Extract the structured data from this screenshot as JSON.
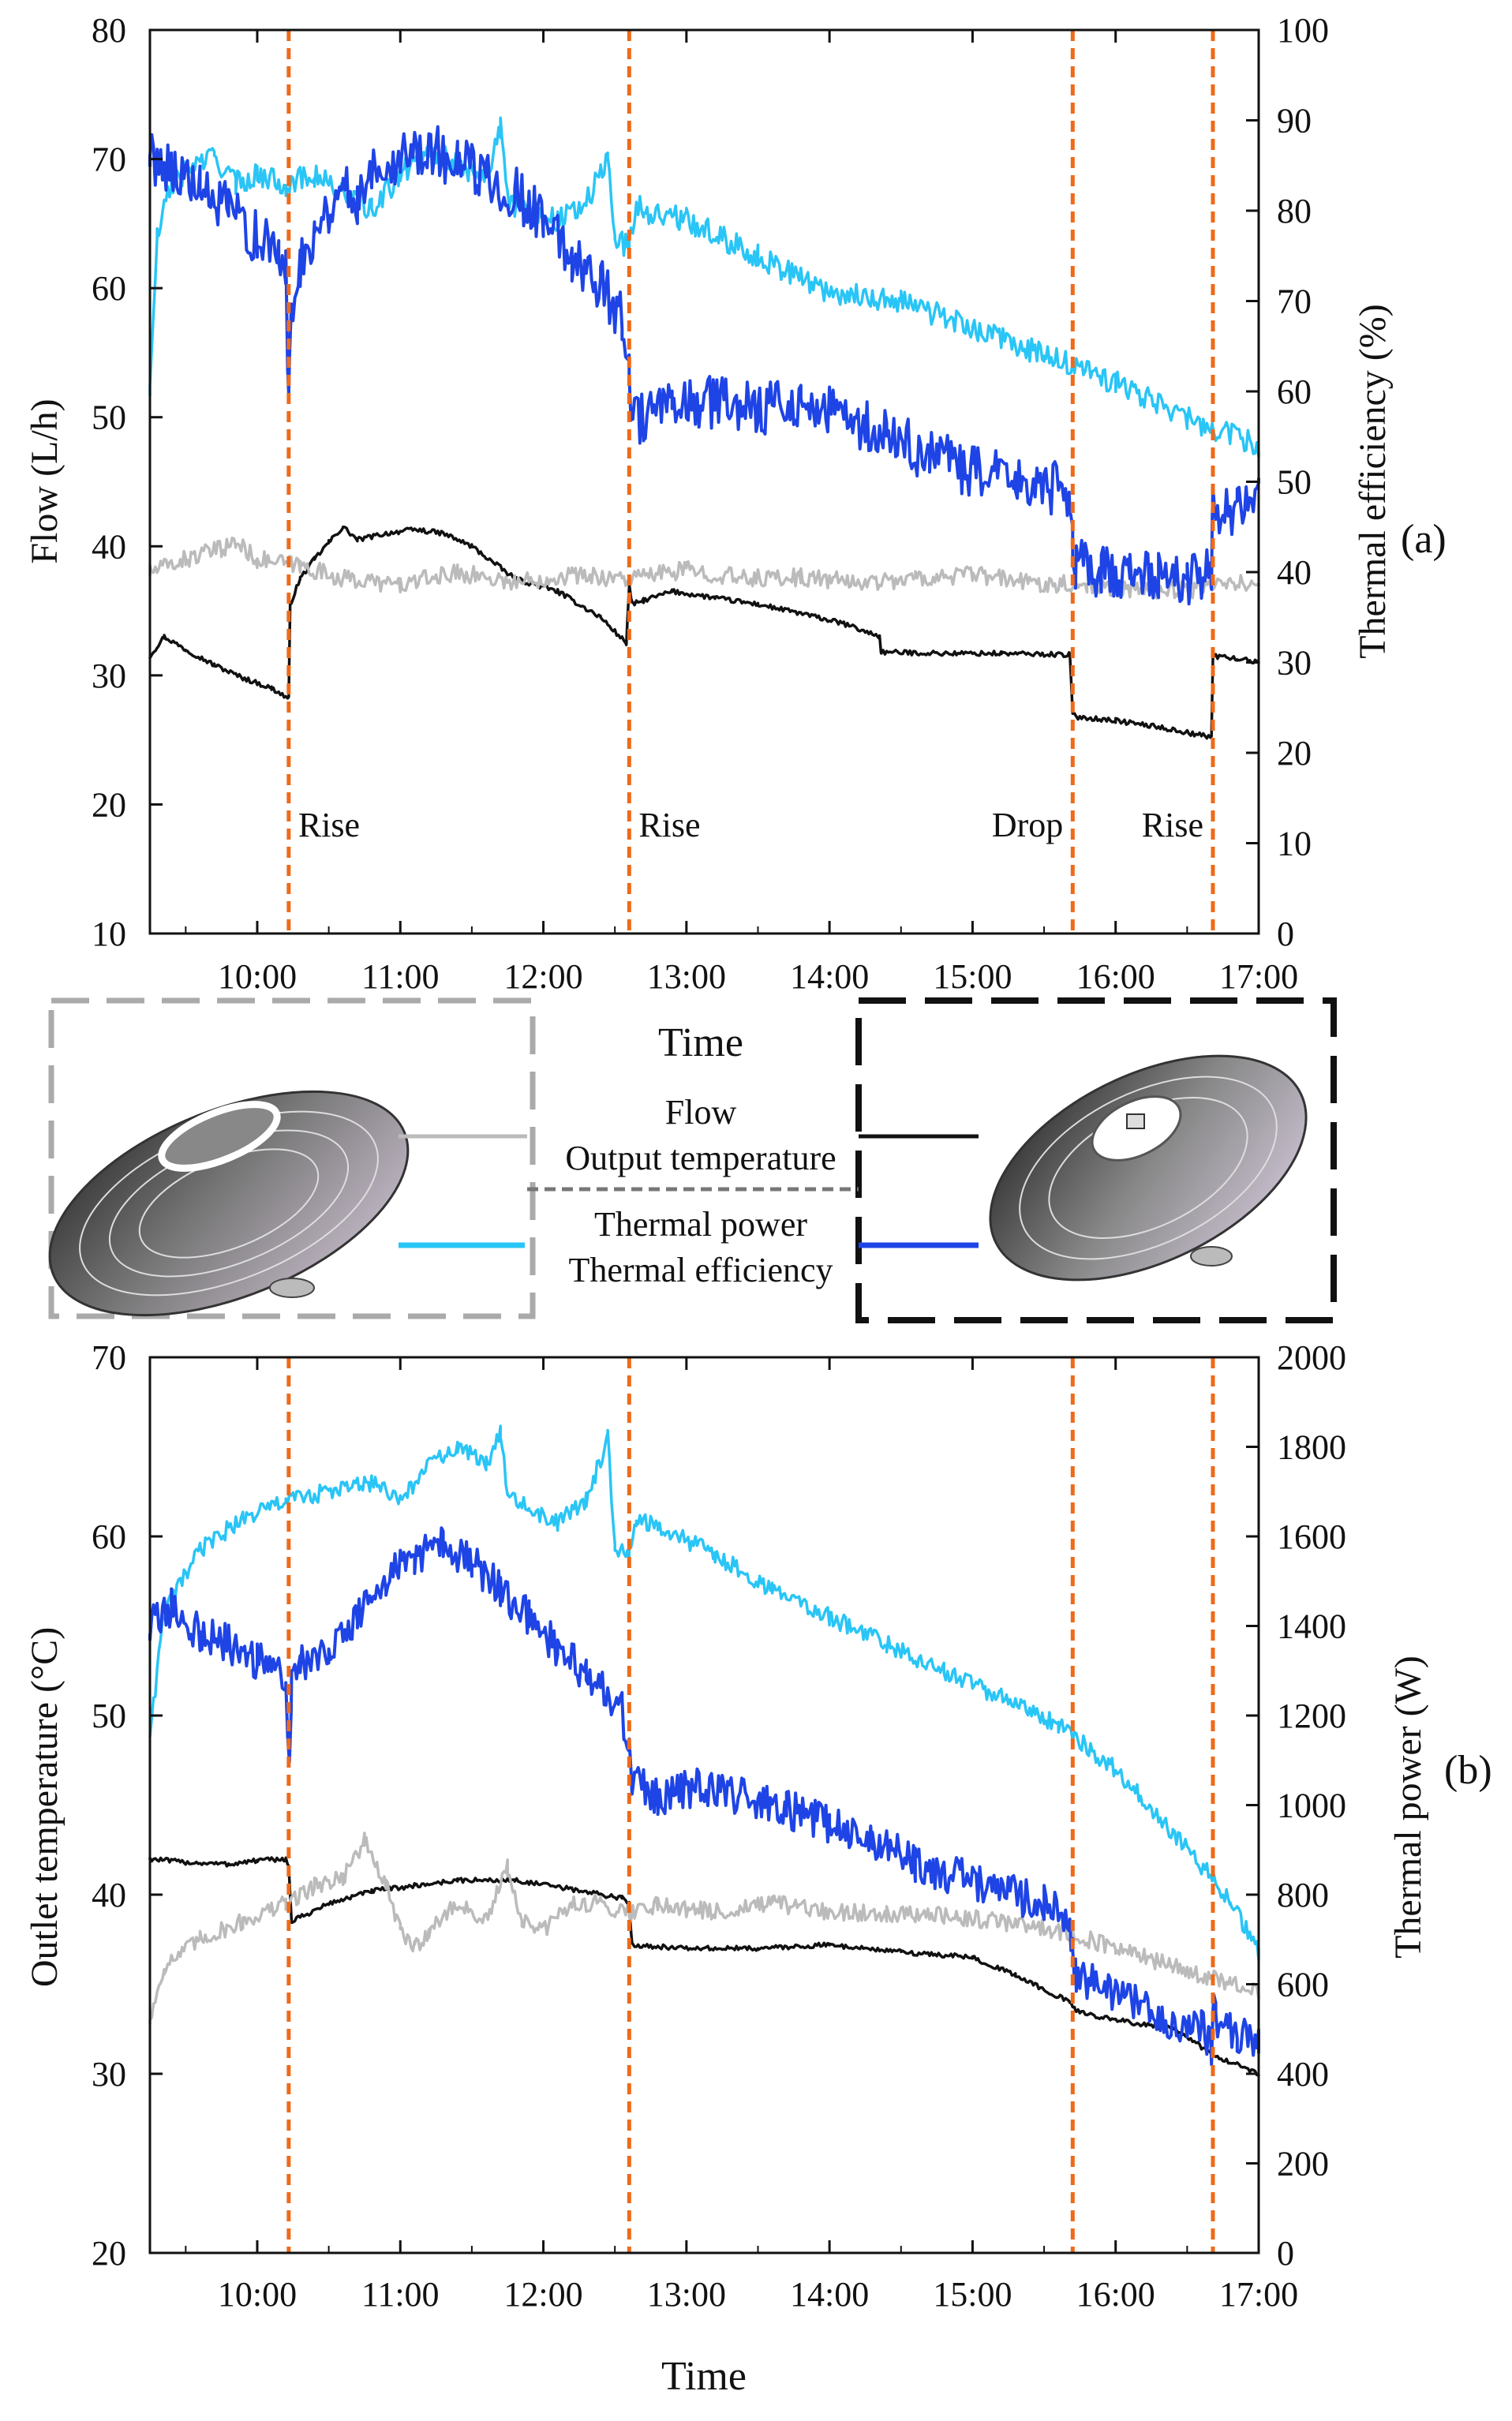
{
  "chart_data": [
    {
      "panel": "(a)",
      "type": "line",
      "xlabel": "",
      "ylabel": "Flow (L/h)",
      "y2label": "Thermal efficiency (%)",
      "xlim": [
        9.25,
        17.0
      ],
      "ylim": [
        10,
        80
      ],
      "y2lim": [
        0,
        100
      ],
      "xticks": [
        "10:00",
        "11:00",
        "12:00",
        "13:00",
        "14:00",
        "15:00",
        "16:00",
        "17:00"
      ],
      "yticks": [
        "10",
        "20",
        "30",
        "40",
        "50",
        "60",
        "70",
        "80"
      ],
      "y2ticks": [
        "0",
        "10",
        "20",
        "30",
        "40",
        "50",
        "60",
        "70",
        "80",
        "90",
        "100"
      ],
      "events": [
        {
          "time": 10.22,
          "label": "Rise"
        },
        {
          "time": 12.6,
          "label": "Rise"
        },
        {
          "time": 15.7,
          "label": "Drop"
        },
        {
          "time": 16.68,
          "label": "Rise"
        }
      ],
      "series": [
        {
          "name": "Flow",
          "axis": "left",
          "color": "#111111",
          "x": [
            9.25,
            9.35,
            9.5,
            9.7,
            9.9,
            10.1,
            10.22,
            10.23,
            10.3,
            10.4,
            10.5,
            10.6,
            10.7,
            10.9,
            11.1,
            11.3,
            11.5,
            11.8,
            12.1,
            12.4,
            12.58,
            12.6,
            12.62,
            12.7,
            12.9,
            13.2,
            13.5,
            13.8,
            14.1,
            14.35,
            14.36,
            14.8,
            15.2,
            15.68,
            15.7,
            15.72,
            16.0,
            16.3,
            16.67,
            16.68,
            16.69,
            16.85,
            17.0
          ],
          "y": [
            31.5,
            33.0,
            32.0,
            30.8,
            29.8,
            29.0,
            28.2,
            35.5,
            37.5,
            39.0,
            40.3,
            41.5,
            40.5,
            41.0,
            41.3,
            41.0,
            40.0,
            37.5,
            36.5,
            34.5,
            32.5,
            37.0,
            35.5,
            35.8,
            36.5,
            36.0,
            35.5,
            34.8,
            34.0,
            33.0,
            31.8,
            31.7,
            31.7,
            31.6,
            27.0,
            26.8,
            26.5,
            26.0,
            25.2,
            31.5,
            31.5,
            31.3,
            31.0
          ]
        },
        {
          "name": "Output temperature",
          "axis": "left",
          "color": "#bbbbbb",
          "x": [
            9.25,
            9.5,
            9.75,
            9.85,
            10.0,
            10.3,
            10.6,
            11.0,
            11.4,
            11.8,
            12.2,
            12.6,
            13.0,
            13.4,
            13.8,
            14.2,
            14.6,
            15.0,
            15.4,
            15.8,
            16.2,
            16.6,
            17.0
          ],
          "y": [
            38.0,
            39.0,
            39.8,
            40.3,
            39.0,
            38.5,
            37.5,
            37.0,
            38.0,
            37.2,
            37.8,
            37.5,
            38.2,
            37.5,
            37.6,
            37.2,
            37.5,
            37.8,
            37.2,
            37.0,
            36.6,
            36.7,
            37.3
          ]
        },
        {
          "name": "Thermal power",
          "axis": "right",
          "color": "#29c5f6",
          "x": [
            9.25,
            9.3,
            9.4,
            9.55,
            9.7,
            9.85,
            10.0,
            10.2,
            10.4,
            10.6,
            10.8,
            11.0,
            11.2,
            11.4,
            11.6,
            11.7,
            11.75,
            11.9,
            12.1,
            12.3,
            12.4,
            12.45,
            12.5,
            12.6,
            12.65,
            12.7,
            13.0,
            13.5,
            14.0,
            14.5,
            15.0,
            15.5,
            16.0,
            16.5,
            17.0
          ],
          "y": [
            60,
            77,
            83,
            85,
            86,
            83,
            84,
            83,
            84,
            82,
            80,
            84,
            87,
            85,
            84,
            89,
            81,
            80,
            79,
            81,
            84,
            86,
            77,
            76,
            81,
            80,
            79,
            75,
            71,
            70,
            67,
            64,
            61,
            57,
            54
          ]
        },
        {
          "name": "Thermal efficiency",
          "axis": "right",
          "color": "#1e44e6",
          "x": [
            9.25,
            9.4,
            9.6,
            9.8,
            10.0,
            10.15,
            10.2,
            10.22,
            10.24,
            10.3,
            10.4,
            10.5,
            10.6,
            10.7,
            10.8,
            11.0,
            11.2,
            11.4,
            11.6,
            11.8,
            12.0,
            12.2,
            12.4,
            12.55,
            12.6,
            12.62,
            12.7,
            12.9,
            13.2,
            13.5,
            13.8,
            14.1,
            14.4,
            14.7,
            15.0,
            15.3,
            15.68,
            15.7,
            15.72,
            15.9,
            16.1,
            16.3,
            16.5,
            16.67,
            16.68,
            16.69,
            16.85,
            17.0
          ],
          "y": [
            86,
            85,
            82,
            80,
            77,
            75,
            73,
            60,
            70,
            74,
            78,
            80,
            83,
            81,
            85,
            86,
            87,
            85,
            84,
            82,
            79,
            75,
            72,
            68,
            63,
            57,
            57,
            58,
            59,
            58,
            59,
            57,
            55,
            53,
            51,
            50,
            49,
            43,
            41,
            40,
            40,
            40,
            39,
            40,
            49,
            47,
            47,
            48
          ]
        }
      ]
    },
    {
      "panel": "(b)",
      "type": "line",
      "xlabel": "Time",
      "ylabel": "Outlet temperature (°C)",
      "y2label": "Thermal power (W)",
      "xlim": [
        9.25,
        17.0
      ],
      "ylim": [
        20,
        70
      ],
      "y2lim": [
        0,
        2000
      ],
      "xticks": [
        "10:00",
        "11:00",
        "12:00",
        "13:00",
        "14:00",
        "15:00",
        "16:00",
        "17:00"
      ],
      "yticks": [
        "20",
        "30",
        "40",
        "50",
        "60",
        "70"
      ],
      "y2ticks": [
        "0",
        "200",
        "400",
        "600",
        "800",
        "1000",
        "1200",
        "1400",
        "1600",
        "1800",
        "2000"
      ],
      "events": [
        {
          "time": 10.22,
          "label": ""
        },
        {
          "time": 12.6,
          "label": ""
        },
        {
          "time": 15.7,
          "label": ""
        },
        {
          "time": 16.68,
          "label": ""
        }
      ],
      "series": [
        {
          "name": "Flow",
          "axis": "left",
          "color": "#111111",
          "x": [
            9.25,
            9.5,
            9.8,
            10.0,
            10.2,
            10.22,
            10.24,
            10.5,
            10.8,
            11.1,
            11.4,
            11.8,
            12.2,
            12.55,
            12.6,
            12.62,
            13.0,
            13.5,
            14.0,
            14.5,
            15.0,
            15.3,
            15.68,
            15.72,
            16.0,
            16.4,
            16.7,
            17.0
          ],
          "y": [
            42.0,
            41.8,
            41.7,
            41.9,
            42.0,
            41.5,
            38.5,
            39.5,
            40.2,
            40.5,
            40.8,
            40.8,
            40.3,
            39.8,
            39.5,
            37.2,
            37.0,
            37.0,
            37.2,
            36.8,
            36.5,
            35.5,
            34.0,
            33.5,
            33.0,
            32.5,
            31.0,
            30.0
          ]
        },
        {
          "name": "Output temperature",
          "axis": "left",
          "color": "#bbbbbb",
          "x": [
            9.25,
            9.35,
            9.6,
            9.9,
            10.2,
            10.4,
            10.6,
            10.75,
            10.9,
            11.0,
            11.1,
            11.2,
            11.4,
            11.6,
            11.75,
            11.85,
            12.0,
            12.2,
            12.4,
            12.6,
            12.8,
            13.2,
            13.6,
            14.0,
            14.4,
            14.8,
            15.2,
            15.6,
            16.0,
            16.4,
            16.8,
            17.0
          ],
          "y": [
            33.0,
            36.0,
            37.5,
            38.5,
            39.5,
            40.5,
            41.0,
            43.0,
            40.5,
            38.0,
            37.0,
            38.0,
            39.5,
            38.5,
            41.5,
            38.5,
            38.0,
            39.5,
            39.5,
            39.0,
            39.5,
            39.0,
            39.5,
            39.0,
            39.0,
            38.8,
            38.5,
            38.0,
            37.0,
            36.0,
            35.0,
            34.5
          ]
        },
        {
          "name": "Thermal power",
          "axis": "right",
          "color": "#29c5f6",
          "x": [
            9.25,
            9.35,
            9.6,
            9.9,
            10.2,
            10.5,
            10.8,
            11.0,
            11.2,
            11.4,
            11.6,
            11.7,
            11.75,
            11.9,
            12.1,
            12.3,
            12.45,
            12.5,
            12.6,
            12.65,
            12.8,
            13.2,
            13.6,
            14.0,
            14.4,
            14.8,
            15.2,
            15.6,
            16.0,
            16.4,
            16.8,
            17.0
          ],
          "y": [
            1160,
            1430,
            1570,
            1640,
            1680,
            1700,
            1720,
            1680,
            1760,
            1800,
            1760,
            1840,
            1700,
            1660,
            1630,
            1680,
            1820,
            1580,
            1560,
            1640,
            1620,
            1560,
            1480,
            1420,
            1360,
            1300,
            1240,
            1180,
            1080,
            940,
            790,
            670
          ]
        },
        {
          "name": "Thermal efficiency",
          "axis": "right",
          "color": "#1e44e6",
          "x": [
            9.25,
            9.4,
            9.6,
            9.8,
            10.0,
            10.2,
            10.22,
            10.24,
            10.3,
            10.5,
            10.7,
            10.9,
            11.1,
            11.3,
            11.5,
            11.7,
            11.9,
            12.1,
            12.3,
            12.55,
            12.6,
            12.62,
            12.8,
            13.1,
            13.4,
            13.7,
            14.0,
            14.3,
            14.6,
            14.9,
            15.2,
            15.5,
            15.68,
            15.7,
            15.72,
            16.0,
            16.3,
            16.6,
            16.67,
            16.68,
            16.7,
            16.85,
            17.0
          ],
          "y": [
            1400,
            1440,
            1380,
            1360,
            1320,
            1300,
            1090,
            1280,
            1310,
            1360,
            1420,
            1500,
            1560,
            1580,
            1540,
            1480,
            1420,
            1350,
            1290,
            1210,
            1120,
            1060,
            1020,
            1040,
            1020,
            990,
            960,
            920,
            870,
            840,
            810,
            780,
            740,
            670,
            620,
            580,
            530,
            500,
            460,
            540,
            520,
            490,
            460
          ]
        }
      ]
    }
  ],
  "legend": {
    "entries": [
      "Flow",
      "Output temperature",
      "Thermal power",
      "Thermal efficiency"
    ],
    "heading": "Time"
  },
  "panel_labels": {
    "a": "(a)",
    "b": "(b)"
  }
}
